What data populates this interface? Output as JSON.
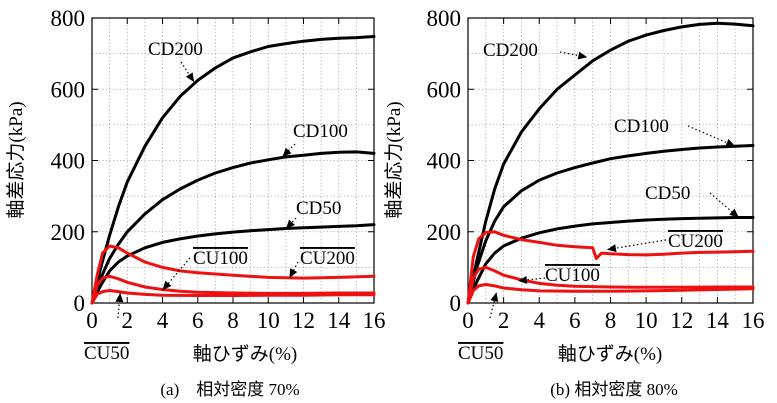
{
  "figure": {
    "panels": [
      {
        "caption": "(a)　相対密度 70%"
      },
      {
        "caption": "(b) 相対密度 80%"
      }
    ]
  },
  "chart_data": [
    {
      "type": "line",
      "title": "",
      "caption": "(a)　相対密度 70%",
      "xlabel": "軸ひずみ(%)",
      "ylabel": "軸差応力(kPa)",
      "xlim": [
        0,
        16
      ],
      "ylim": [
        0,
        800
      ],
      "xticks": [
        0,
        2,
        4,
        6,
        8,
        10,
        12,
        14,
        16
      ],
      "yticks": [
        0,
        200,
        400,
        600,
        800
      ],
      "grid": true,
      "legend": "none",
      "colors": {
        "CD": "#000000",
        "CU": "#ee1111"
      },
      "series": [
        {
          "name": "CD200",
          "group": "CD",
          "x": [
            0,
            0.5,
            1,
            1.5,
            2,
            3,
            4,
            5,
            6,
            7,
            8,
            9,
            10,
            11,
            12,
            13,
            14,
            15,
            16
          ],
          "y": [
            0,
            100,
            190,
            270,
            340,
            440,
            520,
            580,
            625,
            660,
            688,
            705,
            720,
            728,
            735,
            740,
            743,
            745,
            748
          ]
        },
        {
          "name": "CD100",
          "group": "CD",
          "x": [
            0,
            0.5,
            1,
            1.5,
            2,
            3,
            4,
            5,
            6,
            7,
            8,
            9,
            10,
            11,
            12,
            13,
            14,
            15,
            16
          ],
          "y": [
            0,
            70,
            125,
            165,
            200,
            250,
            290,
            320,
            345,
            365,
            380,
            393,
            402,
            410,
            415,
            420,
            423,
            424,
            420
          ]
        },
        {
          "name": "CD50",
          "group": "CD",
          "x": [
            0,
            0.5,
            1,
            1.5,
            2,
            3,
            4,
            5,
            6,
            7,
            8,
            9,
            10,
            11,
            12,
            13,
            14,
            15,
            16
          ],
          "y": [
            0,
            50,
            90,
            115,
            132,
            155,
            170,
            180,
            188,
            194,
            199,
            203,
            206,
            209,
            211,
            213,
            215,
            217,
            220
          ]
        },
        {
          "name": "CU100",
          "group": "CU",
          "x": [
            0,
            0.3,
            0.6,
            1,
            1.5,
            2,
            3,
            4,
            5,
            6,
            8,
            10,
            12,
            14,
            16
          ],
          "y": [
            0,
            50,
            70,
            75,
            68,
            58,
            45,
            38,
            33,
            30,
            28,
            27,
            27,
            28,
            28
          ]
        },
        {
          "name": "CU200",
          "group": "CU",
          "x": [
            0,
            0.3,
            0.6,
            1,
            1.5,
            2,
            3,
            4,
            5,
            6,
            8,
            10,
            12,
            14,
            16
          ],
          "y": [
            0,
            80,
            140,
            160,
            155,
            140,
            115,
            100,
            90,
            85,
            78,
            72,
            70,
            72,
            75
          ]
        },
        {
          "name": "CU50",
          "group": "CU",
          "x": [
            0,
            0.3,
            0.6,
            1,
            1.5,
            2,
            3,
            4,
            6,
            8,
            10,
            12,
            14,
            16
          ],
          "y": [
            0,
            25,
            32,
            35,
            32,
            28,
            24,
            22,
            21,
            21,
            22,
            22,
            23,
            23
          ]
        }
      ],
      "annotations": [
        {
          "text": "CD200",
          "overline": false
        },
        {
          "text": "CD100",
          "overline": false
        },
        {
          "text": "CD50",
          "overline": false
        },
        {
          "text": "CU100",
          "overline": true
        },
        {
          "text": "CU200",
          "overline": true
        },
        {
          "text": "CU50",
          "overline": true
        }
      ]
    },
    {
      "type": "line",
      "title": "",
      "caption": "(b) 相対密度 80%",
      "xlabel": "軸ひずみ(%)",
      "ylabel": "軸差応力(kPa)",
      "xlim": [
        0,
        16
      ],
      "ylim": [
        0,
        800
      ],
      "xticks": [
        0,
        2,
        4,
        6,
        8,
        10,
        12,
        14,
        16
      ],
      "yticks": [
        0,
        200,
        400,
        600,
        800
      ],
      "grid": true,
      "legend": "none",
      "colors": {
        "CD": "#000000",
        "CU": "#ee1111"
      },
      "series": [
        {
          "name": "CD200",
          "group": "CD",
          "x": [
            0,
            0.5,
            1,
            1.5,
            2,
            3,
            4,
            5,
            6,
            7,
            8,
            9,
            10,
            11,
            12,
            13,
            14,
            15,
            16
          ],
          "y": [
            0,
            120,
            230,
            320,
            390,
            480,
            545,
            600,
            640,
            680,
            710,
            735,
            752,
            765,
            775,
            782,
            785,
            783,
            778
          ]
        },
        {
          "name": "CD100",
          "group": "CD",
          "x": [
            0,
            0.5,
            1,
            1.5,
            2,
            3,
            4,
            5,
            6,
            7,
            8,
            9,
            10,
            11,
            12,
            13,
            14,
            15,
            16
          ],
          "y": [
            0,
            100,
            175,
            230,
            270,
            315,
            345,
            365,
            380,
            393,
            405,
            413,
            420,
            426,
            431,
            435,
            438,
            440,
            442
          ]
        },
        {
          "name": "CD50",
          "group": "CD",
          "x": [
            0,
            0.5,
            1,
            1.5,
            2,
            3,
            4,
            5,
            6,
            7,
            8,
            9,
            10,
            11,
            12,
            13,
            14,
            15,
            16
          ],
          "y": [
            0,
            60,
            110,
            140,
            160,
            182,
            197,
            208,
            216,
            222,
            226,
            230,
            233,
            235,
            237,
            238,
            239,
            240,
            240
          ]
        },
        {
          "name": "CU200",
          "group": "CU",
          "x": [
            0,
            0.3,
            0.6,
            1,
            1.5,
            2,
            3,
            4,
            5,
            6,
            7,
            7.2,
            7.5,
            8,
            9,
            10,
            11,
            12,
            13,
            14,
            15,
            16
          ],
          "y": [
            0,
            130,
            180,
            198,
            200,
            190,
            178,
            170,
            162,
            158,
            155,
            125,
            140,
            138,
            136,
            135,
            137,
            140,
            142,
            143,
            144,
            145
          ]
        },
        {
          "name": "CU100",
          "group": "CU",
          "x": [
            0,
            0.3,
            0.6,
            1,
            1.5,
            2,
            3,
            4,
            5,
            6,
            8,
            10,
            12,
            14,
            16
          ],
          "y": [
            0,
            70,
            95,
            100,
            90,
            78,
            65,
            55,
            50,
            47,
            45,
            44,
            44,
            45,
            45
          ]
        },
        {
          "name": "CU50",
          "group": "CU",
          "x": [
            0,
            0.3,
            0.6,
            1,
            1.5,
            2,
            3,
            4,
            6,
            8,
            10,
            12,
            14,
            16
          ],
          "y": [
            0,
            35,
            48,
            52,
            48,
            42,
            37,
            34,
            33,
            33,
            34,
            36,
            38,
            40
          ]
        }
      ],
      "annotations": [
        {
          "text": "CD200",
          "overline": false
        },
        {
          "text": "CD100",
          "overline": false
        },
        {
          "text": "CD50",
          "overline": false
        },
        {
          "text": "CU200",
          "overline": true
        },
        {
          "text": "CU100",
          "overline": true
        },
        {
          "text": "CU50",
          "overline": true
        }
      ]
    }
  ]
}
